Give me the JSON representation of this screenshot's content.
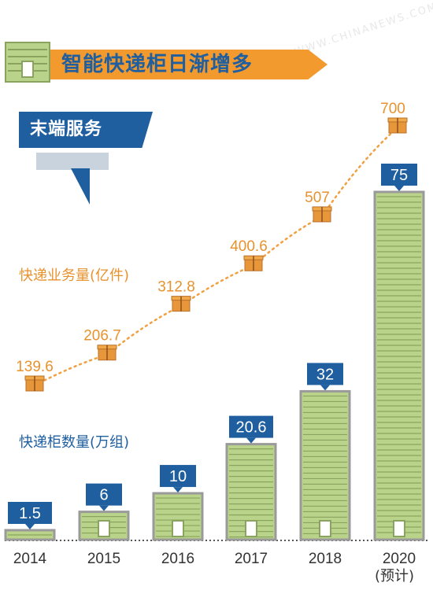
{
  "title": "智能快递柜日渐增多",
  "subtitle": "末端服务",
  "watermark": "WWW.CHINANEWS.COM",
  "colors": {
    "orange": "#f29a2e",
    "blue": "#1f5fa0",
    "cabinet_green": "#b9d48a",
    "cabinet_stroke": "#8aa35e",
    "cabinet_frame": "#9a9a9a",
    "dotted_line": "#f0a040"
  },
  "chart_data": {
    "type": "bar",
    "categories": [
      "2014",
      "2015",
      "2016",
      "2017",
      "2018",
      "2020"
    ],
    "note_2020": "(预计)",
    "series": [
      {
        "name": "快递柜数量(万组)",
        "kind": "bar",
        "values": [
          1.5,
          6,
          10,
          20.6,
          32,
          75
        ],
        "labels": [
          "1.5",
          "6",
          "10",
          "20.6",
          "32",
          "75"
        ]
      },
      {
        "name": "快递业务量(亿件)",
        "kind": "line",
        "values": [
          139.6,
          206.7,
          312.8,
          400.6,
          507,
          700
        ],
        "labels": [
          "139.6",
          "206.7",
          "312.8",
          "400.6",
          "507",
          "700"
        ]
      }
    ]
  }
}
